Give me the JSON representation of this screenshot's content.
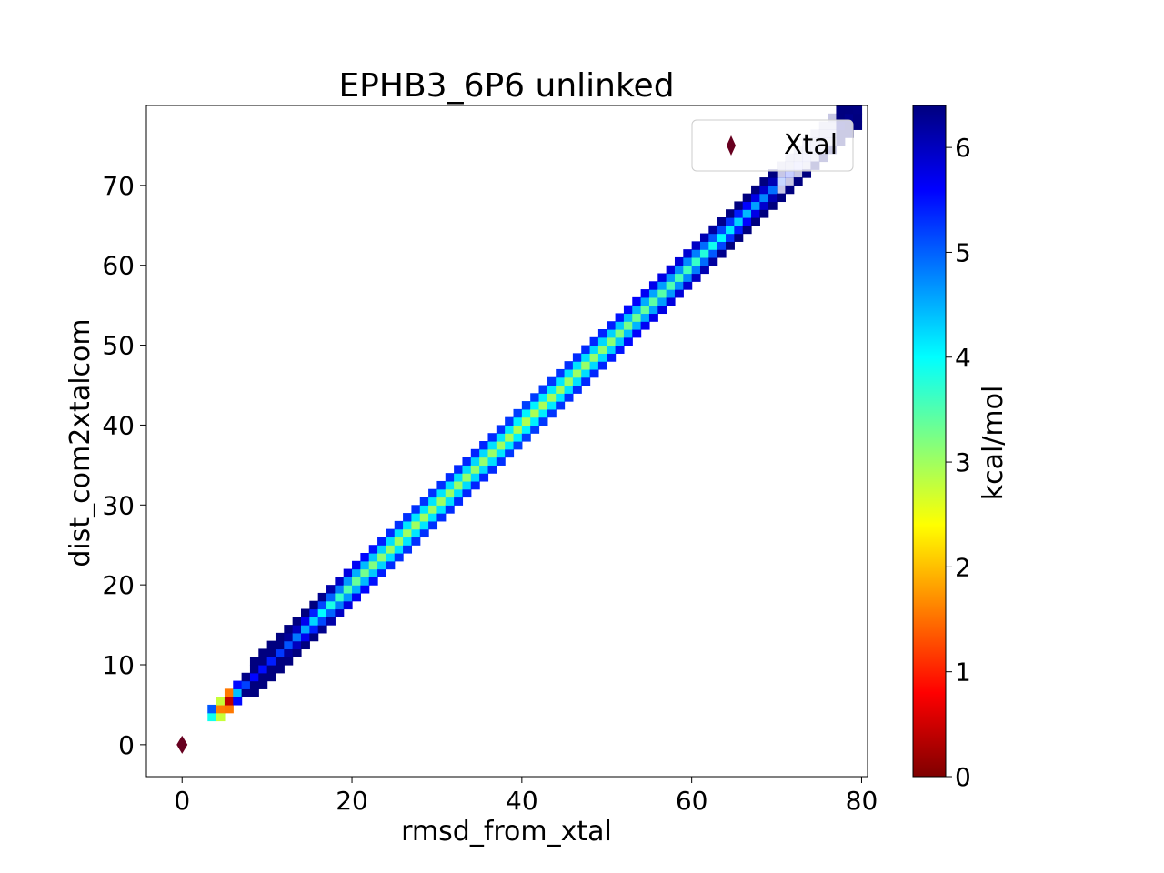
{
  "chart_data": {
    "type": "heatmap",
    "title": "EPHB3_6P6 unlinked",
    "xlabel": "rmsd_from_xtal",
    "ylabel": "dist_com2xtalcom",
    "xlim": [
      -4.2,
      80.7
    ],
    "ylim": [
      -4.0,
      80.0
    ],
    "xticks": [
      0,
      20,
      40,
      60,
      80
    ],
    "yticks": [
      0,
      10,
      20,
      30,
      40,
      50,
      60,
      70
    ],
    "bin_width": 1.0,
    "grid": false,
    "legend": {
      "placement": "top-right",
      "entries": [
        {
          "label": "Xtal",
          "marker": "diamond",
          "color": "#67001f"
        }
      ]
    },
    "colorbar": {
      "label": "kcal/mol",
      "min": 0,
      "max": 6.4,
      "ticks": [
        0,
        1,
        2,
        3,
        4,
        5,
        6
      ],
      "colormap": "jet_r",
      "stops": [
        "#7f0000",
        "#ff0000",
        "#ff8000",
        "#ffff00",
        "#80ff80",
        "#00ffff",
        "#0080ff",
        "#0000ff",
        "#00007f"
      ]
    },
    "reference_point": {
      "name": "Xtal",
      "x": 0,
      "y": 0
    },
    "density_band": {
      "description_values": "free energy along diagonal band y ≈ x",
      "profile_x": [
        3.5,
        4.5,
        5.5,
        6.5,
        8,
        10,
        13,
        16,
        20,
        25,
        30,
        35,
        40,
        45,
        50,
        55,
        60,
        65,
        70,
        73,
        75,
        78,
        80
      ],
      "profile_energy": [
        3.9,
        1.6,
        0.4,
        4.4,
        5.6,
        5.5,
        5.0,
        4.1,
        3.4,
        3.0,
        3.0,
        3.1,
        2.9,
        3.0,
        3.1,
        3.4,
        3.6,
        4.2,
        5.0,
        5.8,
        6.1,
        6.3,
        6.4
      ],
      "half_width_cells": 2
    },
    "faded_cells_note": "",
    "faded_region_x": [
      70,
      77
    ]
  }
}
